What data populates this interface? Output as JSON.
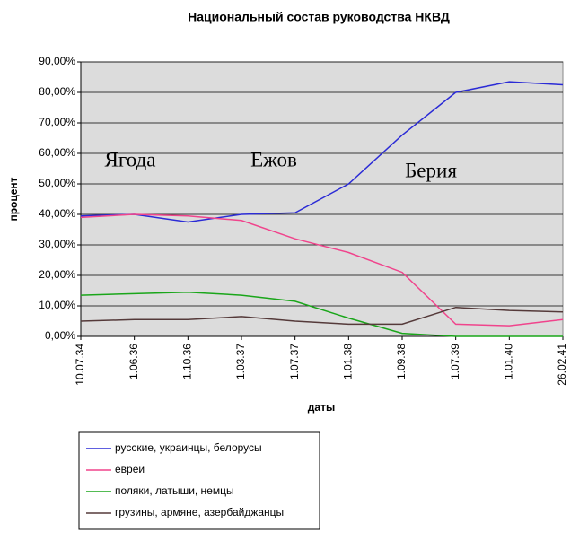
{
  "chart_data": {
    "type": "line",
    "title": "Национальный состав руководства НКВД",
    "y_label": "процент",
    "x_label": "даты",
    "categories": [
      "10.07.34",
      "1.06.36",
      "1.10.36",
      "1.03.37",
      "1.07.37",
      "1.01.38",
      "1.09.38",
      "1.07.39",
      "1.01.40",
      "26.02.41"
    ],
    "series": [
      {
        "name": "русские, украинцы, белорусы",
        "color": "#2b2bd6",
        "values": [
          39.5,
          40,
          37.5,
          40,
          40.5,
          50,
          66,
          80,
          83.5,
          82.5
        ]
      },
      {
        "name": "евреи",
        "color": "#f0448c",
        "values": [
          39,
          40,
          39.5,
          38,
          32,
          27.5,
          21,
          4,
          3.5,
          5.5
        ]
      },
      {
        "name": "поляки, латыши, немцы",
        "color": "#1aa61a",
        "values": [
          13.5,
          14,
          14.5,
          13.5,
          11.5,
          6,
          1,
          0,
          0,
          0
        ]
      },
      {
        "name": "грузины, армяне, азербайджанцы",
        "color": "#553a3a",
        "values": [
          5,
          5.5,
          5.5,
          6.5,
          5,
          4,
          4,
          9.5,
          8.5,
          8
        ]
      }
    ],
    "ylim": [
      0,
      90
    ],
    "yticks": [
      {
        "value": 0,
        "label": "0,00%"
      },
      {
        "value": 10,
        "label": "10,00%"
      },
      {
        "value": 20,
        "label": "20,00%"
      },
      {
        "value": 30,
        "label": "30,00%"
      },
      {
        "value": 40,
        "label": "40,00%"
      },
      {
        "value": 50,
        "label": "50,00%"
      },
      {
        "value": 60,
        "label": "60,00%"
      },
      {
        "value": 70,
        "label": "70,00%"
      },
      {
        "value": 80,
        "label": "80,00%"
      },
      {
        "value": 90,
        "label": "90,00%"
      }
    ],
    "grid": true,
    "annotations": [
      "Ягода",
      "Ежов",
      "Берия"
    ]
  }
}
